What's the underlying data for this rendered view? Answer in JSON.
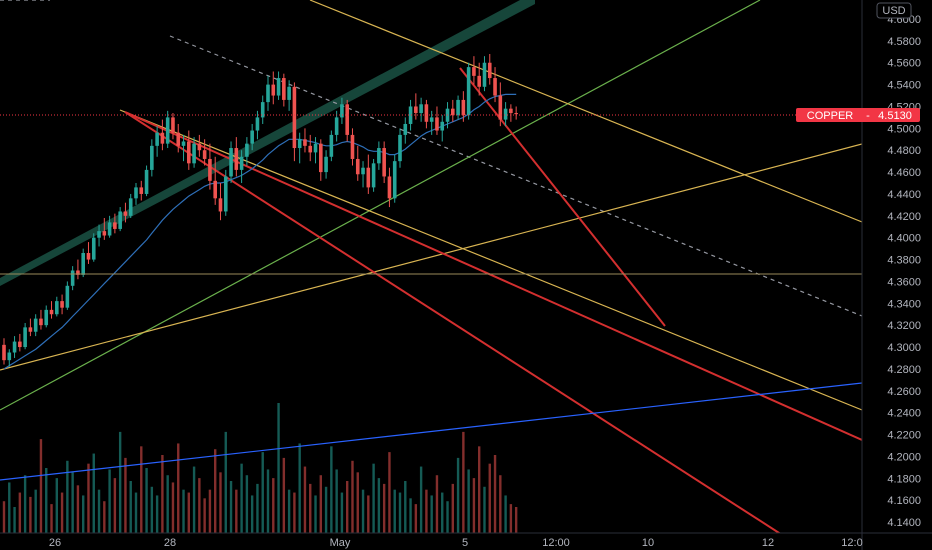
{
  "chart_data": {
    "type": "candlestick",
    "symbol": "COPPER",
    "currency": "USD",
    "last_price": "4.5130",
    "y_ticks": [
      "4.6000",
      "4.5800",
      "4.5600",
      "4.5400",
      "4.5200",
      "4.5000",
      "4.4800",
      "4.4600",
      "4.4400",
      "4.4200",
      "4.4000",
      "4.3800",
      "4.3600",
      "4.3400",
      "4.3200",
      "4.3000",
      "4.2800",
      "4.2600",
      "4.2400",
      "4.2200",
      "4.2000",
      "4.1800",
      "4.1600",
      "4.1400"
    ],
    "x_ticks": [
      "26",
      "28",
      "May",
      "5",
      "12:00",
      "10",
      "12",
      "12:0"
    ],
    "ylim": [
      4.132,
      4.613
    ],
    "grid": false,
    "colors": {
      "up": "#26a69a",
      "down": "#ef5350",
      "ma": "#2e6fb8",
      "price_line": "#f23645",
      "channel_fill": "#1e5e4e",
      "orange": "#d8b452",
      "green": "#6ab04c",
      "red": "#d32f2f",
      "blue": "#2962ff",
      "dashed": "#9598a1"
    },
    "ohlc": [
      [
        4.302,
        4.308,
        4.284,
        4.288
      ],
      [
        4.288,
        4.298,
        4.282,
        4.295
      ],
      [
        4.295,
        4.31,
        4.29,
        4.305
      ],
      [
        4.305,
        4.312,
        4.296,
        4.3
      ],
      [
        4.3,
        4.322,
        4.298,
        4.318
      ],
      [
        4.318,
        4.326,
        4.31,
        4.314
      ],
      [
        4.314,
        4.33,
        4.31,
        4.326
      ],
      [
        4.326,
        4.334,
        4.316,
        4.32
      ],
      [
        4.32,
        4.338,
        4.318,
        4.334
      ],
      [
        4.334,
        4.342,
        4.326,
        4.33
      ],
      [
        4.33,
        4.346,
        4.328,
        4.342
      ],
      [
        4.342,
        4.348,
        4.33,
        4.336
      ],
      [
        4.336,
        4.36,
        4.334,
        4.356
      ],
      [
        4.356,
        4.374,
        4.352,
        4.37
      ],
      [
        4.37,
        4.38,
        4.362,
        4.366
      ],
      [
        4.366,
        4.39,
        4.364,
        4.386
      ],
      [
        4.386,
        4.396,
        4.376,
        4.38
      ],
      [
        4.38,
        4.404,
        4.378,
        4.4
      ],
      [
        4.4,
        4.412,
        4.392,
        4.406
      ],
      [
        4.406,
        4.418,
        4.398,
        4.402
      ],
      [
        4.402,
        4.42,
        4.4,
        4.414
      ],
      [
        4.414,
        4.422,
        4.404,
        4.408
      ],
      [
        4.408,
        4.428,
        4.406,
        4.424
      ],
      [
        4.424,
        4.432,
        4.414,
        4.42
      ],
      [
        4.42,
        4.44,
        4.418,
        4.436
      ],
      [
        4.436,
        4.45,
        4.43,
        4.446
      ],
      [
        4.446,
        4.452,
        4.434,
        4.44
      ],
      [
        4.44,
        4.466,
        4.438,
        4.462
      ],
      [
        4.462,
        4.49,
        4.456,
        4.484
      ],
      [
        4.484,
        4.502,
        4.474,
        4.496
      ],
      [
        4.496,
        4.508,
        4.48,
        4.486
      ],
      [
        4.486,
        4.516,
        4.482,
        4.51
      ],
      [
        4.51,
        4.514,
        4.49,
        4.496
      ],
      [
        4.496,
        4.504,
        4.478,
        4.484
      ],
      [
        4.484,
        4.494,
        4.47,
        4.488
      ],
      [
        4.488,
        4.498,
        4.462,
        4.468
      ],
      [
        4.468,
        4.492,
        4.464,
        4.486
      ],
      [
        4.486,
        4.494,
        4.474,
        4.48
      ],
      [
        4.48,
        4.49,
        4.466,
        4.472
      ],
      [
        4.472,
        4.486,
        4.444,
        4.452
      ],
      [
        4.452,
        4.474,
        4.43,
        4.436
      ],
      [
        4.436,
        4.45,
        4.416,
        4.424
      ],
      [
        4.424,
        4.462,
        4.42,
        4.456
      ],
      [
        4.456,
        4.488,
        4.45,
        4.482
      ],
      [
        4.482,
        4.492,
        4.456,
        4.462
      ],
      [
        4.462,
        4.48,
        4.45,
        4.474
      ],
      [
        4.474,
        4.492,
        4.466,
        4.486
      ],
      [
        4.486,
        4.504,
        4.48,
        4.498
      ],
      [
        4.498,
        4.516,
        4.49,
        4.51
      ],
      [
        4.51,
        4.53,
        4.504,
        4.524
      ],
      [
        4.524,
        4.548,
        4.516,
        4.54
      ],
      [
        4.54,
        4.552,
        4.522,
        4.53
      ],
      [
        4.53,
        4.552,
        4.526,
        4.546
      ],
      [
        4.546,
        4.55,
        4.52,
        4.526
      ],
      [
        4.526,
        4.544,
        4.516,
        4.538
      ],
      [
        4.538,
        4.542,
        4.47,
        4.482
      ],
      [
        4.482,
        4.496,
        4.468,
        4.49
      ],
      [
        4.49,
        4.5,
        4.478,
        4.484
      ],
      [
        4.484,
        4.494,
        4.47,
        4.478
      ],
      [
        4.478,
        4.492,
        4.468,
        4.486
      ],
      [
        4.486,
        4.49,
        4.452,
        4.46
      ],
      [
        4.46,
        4.48,
        4.454,
        4.474
      ],
      [
        4.474,
        4.498,
        4.47,
        4.494
      ],
      [
        4.494,
        4.516,
        4.488,
        4.51
      ],
      [
        4.51,
        4.528,
        4.504,
        4.522
      ],
      [
        4.522,
        4.526,
        4.488,
        4.494
      ],
      [
        4.494,
        4.5,
        4.466,
        4.472
      ],
      [
        4.472,
        4.484,
        4.452,
        4.458
      ],
      [
        4.458,
        4.47,
        4.446,
        4.464
      ],
      [
        4.464,
        4.476,
        4.44,
        4.446
      ],
      [
        4.446,
        4.472,
        4.442,
        4.468
      ],
      [
        4.468,
        4.488,
        4.462,
        4.482
      ],
      [
        4.482,
        4.488,
        4.45,
        4.456
      ],
      [
        4.456,
        4.464,
        4.428,
        4.436
      ],
      [
        4.436,
        4.476,
        4.432,
        4.47
      ],
      [
        4.47,
        4.5,
        4.464,
        4.494
      ],
      [
        4.494,
        4.51,
        4.486,
        4.504
      ],
      [
        4.504,
        4.526,
        4.498,
        4.52
      ],
      [
        4.52,
        4.532,
        4.508,
        4.514
      ],
      [
        4.514,
        4.528,
        4.506,
        4.522
      ],
      [
        4.522,
        4.526,
        4.5,
        4.506
      ],
      [
        4.506,
        4.516,
        4.494,
        4.51
      ],
      [
        4.51,
        4.52,
        4.494,
        4.498
      ],
      [
        4.498,
        4.512,
        4.488,
        4.506
      ],
      [
        4.506,
        4.524,
        4.5,
        4.518
      ],
      [
        4.518,
        4.526,
        4.506,
        4.512
      ],
      [
        4.512,
        4.53,
        4.508,
        4.526
      ],
      [
        4.526,
        4.534,
        4.506,
        4.512
      ],
      [
        4.512,
        4.56,
        4.508,
        4.556
      ],
      [
        4.556,
        4.566,
        4.54,
        4.548
      ],
      [
        4.548,
        4.56,
        4.53,
        4.538
      ],
      [
        4.538,
        4.566,
        4.534,
        4.56
      ],
      [
        4.56,
        4.568,
        4.54,
        4.546
      ],
      [
        4.546,
        4.556,
        4.524,
        4.53
      ],
      [
        4.53,
        4.542,
        4.502,
        4.508
      ],
      [
        4.508,
        4.524,
        4.502,
        4.518
      ],
      [
        4.518,
        4.522,
        4.506,
        4.514
      ],
      [
        4.514,
        4.52,
        4.508,
        4.513
      ]
    ],
    "ma": [
      4.28,
      4.283,
      4.286,
      4.289,
      4.292,
      4.295,
      4.298,
      4.302,
      4.306,
      4.31,
      4.314,
      4.318,
      4.323,
      4.328,
      4.333,
      4.338,
      4.343,
      4.348,
      4.353,
      4.358,
      4.363,
      4.368,
      4.373,
      4.378,
      4.383,
      4.388,
      4.393,
      4.398,
      4.404,
      4.41,
      4.416,
      4.421,
      4.426,
      4.43,
      4.434,
      4.438,
      4.441,
      4.444,
      4.447,
      4.449,
      4.45,
      4.45,
      4.451,
      4.453,
      4.455,
      4.457,
      4.46,
      4.463,
      4.467,
      4.471,
      4.476,
      4.48,
      4.484,
      4.487,
      4.49,
      4.49,
      4.49,
      4.489,
      4.488,
      4.487,
      4.485,
      4.484,
      4.484,
      4.485,
      4.487,
      4.488,
      4.487,
      4.485,
      4.483,
      4.48,
      4.479,
      4.479,
      4.478,
      4.476,
      4.476,
      4.478,
      4.481,
      4.485,
      4.489,
      4.493,
      4.496,
      4.498,
      4.5,
      4.502,
      4.504,
      4.506,
      4.508,
      4.51,
      4.513,
      4.517,
      4.52,
      4.524,
      4.527,
      4.529,
      4.53,
      4.531,
      4.531,
      4.531
    ],
    "volume": [
      22,
      35,
      18,
      28,
      40,
      25,
      30,
      65,
      45,
      20,
      38,
      28,
      50,
      42,
      33,
      26,
      48,
      55,
      30,
      22,
      44,
      38,
      70,
      52,
      36,
      28,
      60,
      45,
      32,
      26,
      54,
      40,
      35,
      62,
      30,
      28,
      46,
      38,
      24,
      30,
      58,
      42,
      70,
      36,
      30,
      48,
      40,
      26,
      34,
      56,
      44,
      38,
      90,
      52,
      30,
      28,
      62,
      46,
      34,
      26,
      40,
      32,
      60,
      44,
      28,
      36,
      50,
      42,
      30,
      26,
      48,
      38,
      34,
      56,
      30,
      28,
      36,
      24,
      20,
      46,
      30,
      26,
      40,
      28,
      22,
      34,
      52,
      70,
      44,
      38,
      60,
      32,
      48,
      54,
      40,
      26,
      20,
      18
    ]
  }
}
